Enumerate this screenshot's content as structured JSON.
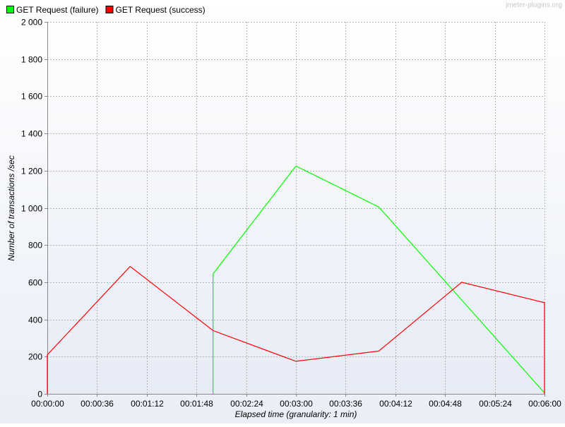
{
  "watermark": "jmeter-plugins.org",
  "chart_data": {
    "type": "line",
    "title": "",
    "xlabel": "Elapsed time (granularity: 1 min)",
    "ylabel": "Number of transactions /sec",
    "x_ticks": [
      "00:00:00",
      "00:00:36",
      "00:01:12",
      "00:01:48",
      "00:02:24",
      "00:03:00",
      "00:03:36",
      "00:04:12",
      "00:04:48",
      "00:05:24",
      "00:06:00"
    ],
    "x_tick_seconds": [
      0,
      36,
      72,
      108,
      144,
      180,
      216,
      252,
      288,
      324,
      360
    ],
    "xlim_seconds": [
      0,
      360
    ],
    "y_ticks": [
      "0",
      "200",
      "400",
      "600",
      "800",
      "1 000",
      "1 200",
      "1 400",
      "1 600",
      "1 800",
      "2 000"
    ],
    "y_tick_values": [
      0,
      200,
      400,
      600,
      800,
      1000,
      1200,
      1400,
      1600,
      1800,
      2000
    ],
    "ylim": [
      0,
      2000
    ],
    "grid": true,
    "legend_position": "top-left",
    "series": [
      {
        "name": "GET Request (failure)",
        "color": "#00ff00",
        "points": [
          {
            "t": "00:02:00",
            "v": 0
          },
          {
            "t": "00:02:00",
            "v": 645
          },
          {
            "t": "00:03:00",
            "v": 1225
          },
          {
            "t": "00:04:00",
            "v": 1005
          },
          {
            "t": "00:06:00",
            "v": 5
          }
        ]
      },
      {
        "name": "GET Request (success)",
        "color": "#ff0000",
        "points": [
          {
            "t": "00:00:00",
            "v": 0
          },
          {
            "t": "00:00:00",
            "v": 210
          },
          {
            "t": "00:01:00",
            "v": 685
          },
          {
            "t": "00:02:00",
            "v": 340
          },
          {
            "t": "00:03:00",
            "v": 175
          },
          {
            "t": "00:04:00",
            "v": 230
          },
          {
            "t": "00:05:00",
            "v": 600
          },
          {
            "t": "00:06:00",
            "v": 490
          },
          {
            "t": "00:06:00",
            "v": 0
          }
        ]
      }
    ]
  }
}
